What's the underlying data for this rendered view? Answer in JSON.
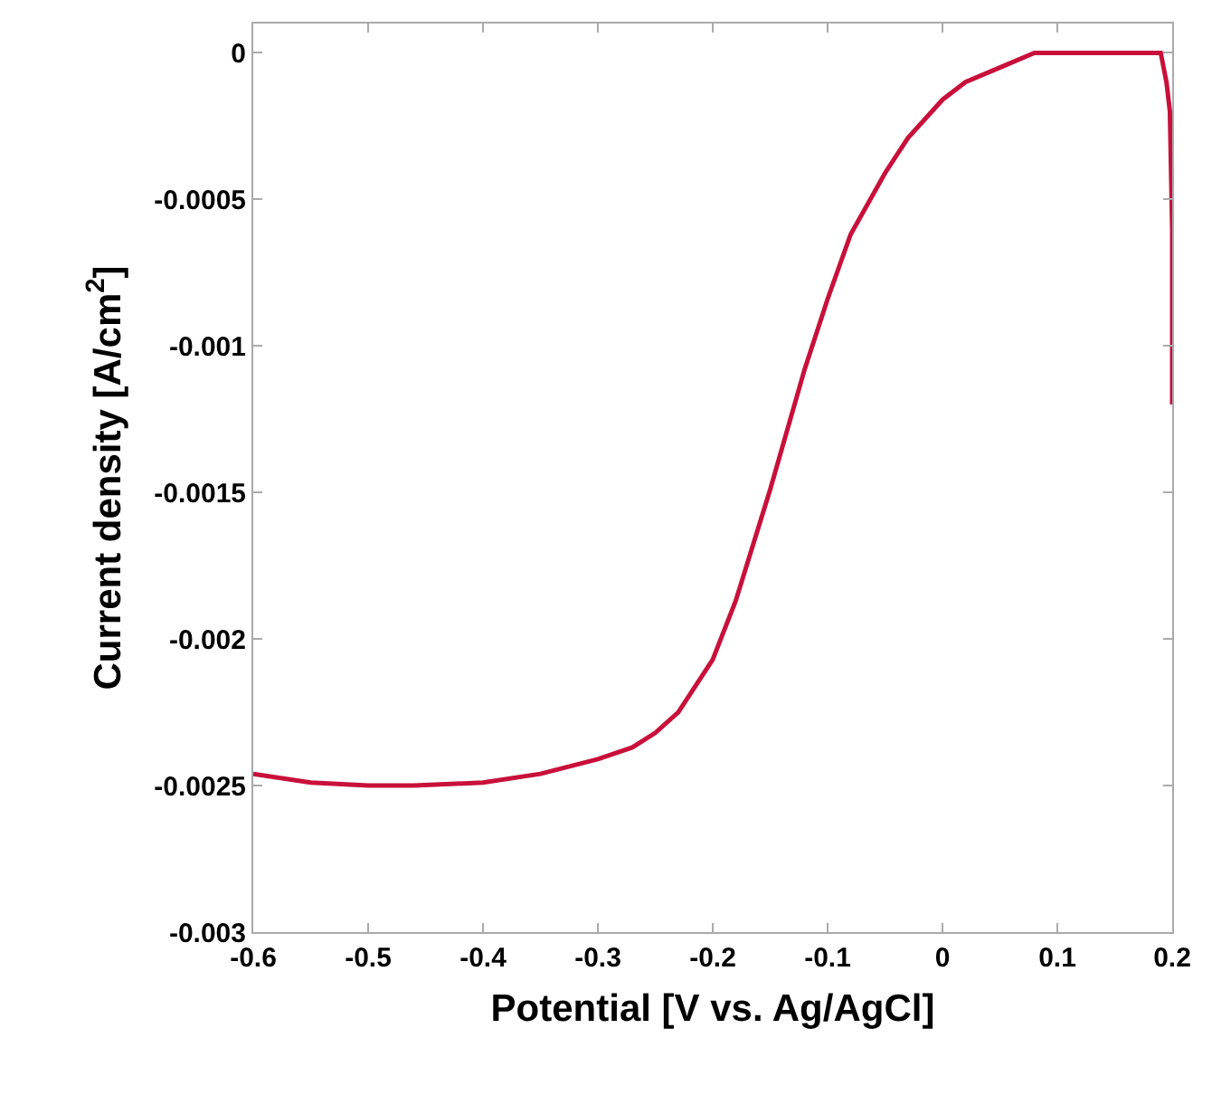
{
  "chart_data": {
    "type": "line",
    "xlabel": "Potential [V vs. Ag/AgCl]",
    "ylabel": "Current density [A/cm$^{2}$]",
    "series": [
      {
        "color": "#c8103a",
        "x": [
          -0.6,
          -0.55,
          -0.5,
          -0.46,
          -0.4,
          -0.35,
          -0.3,
          -0.27,
          -0.25,
          -0.23,
          -0.2,
          -0.18,
          -0.15,
          -0.12,
          -0.1,
          -0.08,
          -0.05,
          -0.03,
          0,
          0.02,
          0.05,
          0.08,
          0.1,
          0.13,
          0.15,
          0.18,
          0.19,
          0.195,
          0.198,
          0.2,
          0.2
        ],
        "values": [
          -0.00246,
          -0.00249,
          -0.0025,
          -0.0025,
          -0.00249,
          -0.00246,
          -0.00241,
          -0.00237,
          -0.00232,
          -0.00225,
          -0.00207,
          -0.00187,
          -0.00149,
          -0.00108,
          -0.00084,
          -0.00062,
          -0.00041,
          -0.00029,
          -0.00016,
          -0.0001,
          -5e-05,
          0,
          0,
          0,
          0,
          0,
          0,
          -0.0001,
          -0.0002,
          -0.0006,
          -0.0012
        ]
      }
    ],
    "xlim": [
      -0.6,
      0.2
    ],
    "xticks": [
      -0.6,
      -0.5,
      -0.4,
      -0.3,
      -0.2,
      -0.1,
      0,
      0.1,
      0.2
    ],
    "ylim": [
      -0.003,
      0.0001
    ],
    "yticks": [
      -0.003,
      -0.0025,
      -0.002,
      -0.0015,
      -0.001,
      -0.0005,
      0
    ],
    "grid": false,
    "marker": "none",
    "line_style": "solid"
  }
}
